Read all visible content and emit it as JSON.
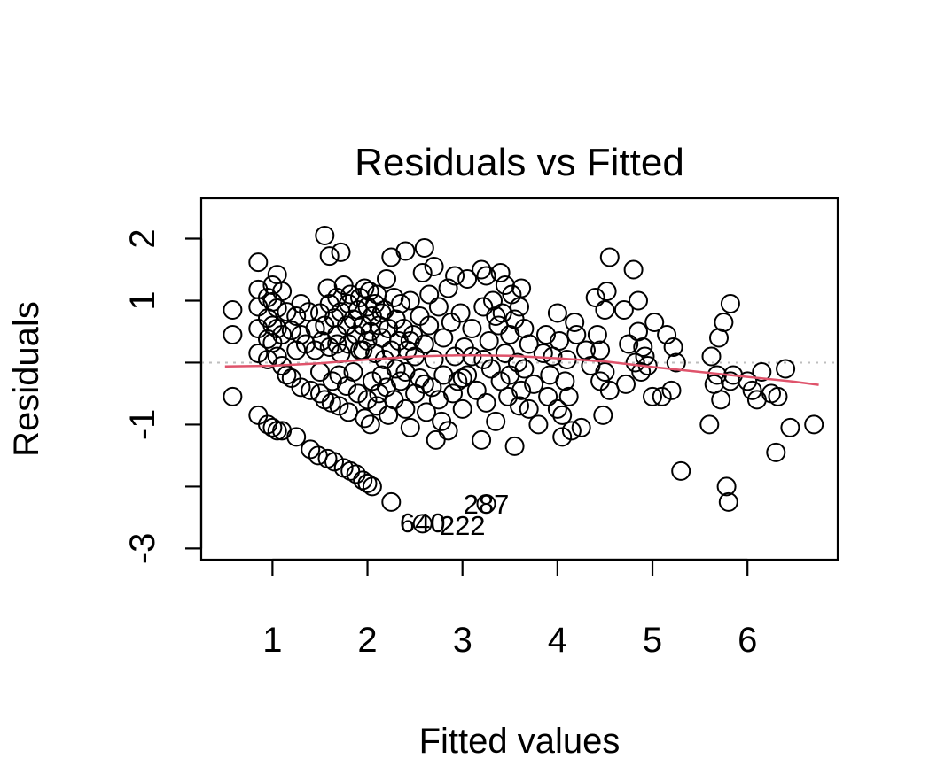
{
  "chart_data": {
    "type": "scatter",
    "title": "Residuals vs Fitted",
    "xlabel": "Fitted values",
    "ylabel": "Residuals",
    "xlim": [
      0.25,
      6.95
    ],
    "ylim": [
      -3.18,
      2.65
    ],
    "x_ticks": [
      1,
      2,
      3,
      4,
      5,
      6
    ],
    "x_tick_labels": [
      "1",
      "2",
      "3",
      "4",
      "5",
      "6"
    ],
    "y_ticks": [
      -3,
      -2,
      -1,
      0,
      1,
      2
    ],
    "y_tick_labels": [
      "-3",
      "",
      "-1",
      "",
      "1",
      "2"
    ],
    "reference_line": {
      "y": 0,
      "style": "dotted",
      "color": "#bebebe"
    },
    "smooth": {
      "color": "#df536b",
      "x": [
        0.5,
        1.0,
        1.5,
        2.0,
        2.5,
        3.0,
        3.5,
        4.0,
        4.5,
        5.0,
        5.5,
        6.0,
        6.5,
        6.75
      ],
      "y": [
        -0.06,
        -0.05,
        -0.01,
        0.05,
        0.1,
        0.12,
        0.11,
        0.07,
        0.02,
        -0.07,
        -0.15,
        -0.23,
        -0.31,
        -0.36
      ]
    },
    "point_labels": [
      {
        "text": "640",
        "x": 2.58,
        "y": -2.58
      },
      {
        "text": "222",
        "x": 3.0,
        "y": -2.62
      },
      {
        "text": "287",
        "x": 3.25,
        "y": -2.28
      }
    ],
    "points": [
      [
        0.58,
        0.85
      ],
      [
        0.58,
        0.45
      ],
      [
        0.58,
        -0.55
      ],
      [
        0.85,
        1.62
      ],
      [
        0.85,
        1.18
      ],
      [
        0.85,
        0.9
      ],
      [
        0.85,
        0.55
      ],
      [
        0.85,
        0.15
      ],
      [
        0.85,
        -0.85
      ],
      [
        0.95,
        1.05
      ],
      [
        0.95,
        0.72
      ],
      [
        0.95,
        0.38
      ],
      [
        0.95,
        0.05
      ],
      [
        0.95,
        -1.0
      ],
      [
        1.0,
        1.25
      ],
      [
        1.0,
        0.98
      ],
      [
        1.0,
        0.6
      ],
      [
        1.0,
        0.32
      ],
      [
        1.0,
        -1.05
      ],
      [
        1.05,
        1.42
      ],
      [
        1.05,
        0.88
      ],
      [
        1.05,
        0.55
      ],
      [
        1.05,
        0.1
      ],
      [
        1.05,
        -1.1
      ],
      [
        1.1,
        1.15
      ],
      [
        1.1,
        0.45
      ],
      [
        1.1,
        -0.05
      ],
      [
        1.1,
        -1.1
      ],
      [
        1.15,
        0.82
      ],
      [
        1.15,
        -0.2
      ],
      [
        1.2,
        0.52
      ],
      [
        1.2,
        -0.25
      ],
      [
        1.25,
        0.75
      ],
      [
        1.25,
        0.2
      ],
      [
        1.25,
        -1.2
      ],
      [
        1.3,
        0.45
      ],
      [
        1.3,
        -0.4
      ],
      [
        1.35,
        0.3
      ],
      [
        1.38,
        0.82
      ],
      [
        1.4,
        -0.45
      ],
      [
        1.4,
        -1.4
      ],
      [
        1.45,
        0.55
      ],
      [
        1.45,
        0.2
      ],
      [
        1.48,
        -1.5
      ],
      [
        1.5,
        0.8
      ],
      [
        1.5,
        -0.5
      ],
      [
        1.52,
        0.35
      ],
      [
        1.55,
        2.05
      ],
      [
        1.55,
        0.6
      ],
      [
        1.55,
        -0.6
      ],
      [
        1.58,
        1.2
      ],
      [
        1.58,
        -1.55
      ],
      [
        1.6,
        1.72
      ],
      [
        1.6,
        0.95
      ],
      [
        1.6,
        0.25
      ],
      [
        1.62,
        -0.65
      ],
      [
        1.63,
        -0.3
      ],
      [
        1.65,
        0.72
      ],
      [
        1.65,
        -1.6
      ],
      [
        1.68,
        1.05
      ],
      [
        1.68,
        0.45
      ],
      [
        1.7,
        -0.7
      ],
      [
        1.7,
        -0.2
      ],
      [
        1.72,
        1.78
      ],
      [
        1.72,
        0.82
      ],
      [
        1.72,
        0.15
      ],
      [
        1.75,
        1.25
      ],
      [
        1.75,
        -1.7
      ],
      [
        1.78,
        0.6
      ],
      [
        1.78,
        -0.38
      ],
      [
        1.8,
        0.95
      ],
      [
        1.8,
        0.3
      ],
      [
        1.8,
        -0.8
      ],
      [
        1.82,
        1.1
      ],
      [
        1.82,
        -1.75
      ],
      [
        1.85,
        0.7
      ],
      [
        1.85,
        -0.15
      ],
      [
        1.88,
        0.45
      ],
      [
        1.88,
        -1.8
      ],
      [
        1.9,
        0.85
      ],
      [
        1.9,
        -0.5
      ],
      [
        1.92,
        1.05
      ],
      [
        1.92,
        0.2
      ],
      [
        1.95,
        0.6
      ],
      [
        1.95,
        -1.9
      ],
      [
        1.97,
        1.2
      ],
      [
        1.97,
        -0.9
      ],
      [
        2.0,
        0.9
      ],
      [
        2.0,
        0.35
      ],
      [
        2.0,
        -0.6
      ],
      [
        2.0,
        -1.95
      ],
      [
        2.02,
        1.15
      ],
      [
        2.03,
        0.5
      ],
      [
        2.03,
        -1.0
      ],
      [
        2.05,
        0.75
      ],
      [
        2.05,
        -0.3
      ],
      [
        2.05,
        -2.0
      ],
      [
        2.08,
        0.95
      ],
      [
        2.08,
        0.15
      ],
      [
        2.1,
        1.1
      ],
      [
        2.1,
        -0.7
      ],
      [
        2.12,
        0.6
      ],
      [
        2.12,
        -0.5
      ],
      [
        2.15,
        0.4
      ],
      [
        2.15,
        -0.2
      ],
      [
        2.18,
        0.85
      ],
      [
        2.18,
        0.05
      ],
      [
        2.2,
        1.35
      ],
      [
        2.2,
        -0.4
      ],
      [
        2.22,
        0.55
      ],
      [
        2.22,
        -0.85
      ],
      [
        2.25,
        1.7
      ],
      [
        2.25,
        0.2
      ],
      [
        2.25,
        -2.25
      ],
      [
        2.28,
        1.05
      ],
      [
        2.28,
        -0.6
      ],
      [
        2.3,
        0.7
      ],
      [
        2.3,
        -0.1
      ],
      [
        2.33,
        0.35
      ],
      [
        2.35,
        0.95
      ],
      [
        2.35,
        -0.3
      ],
      [
        2.38,
        0.55
      ],
      [
        2.4,
        1.8
      ],
      [
        2.4,
        -0.75
      ],
      [
        2.42,
        0.2
      ],
      [
        2.45,
        1.0
      ],
      [
        2.45,
        -1.05
      ],
      [
        2.48,
        0.45
      ],
      [
        2.5,
        0.1
      ],
      [
        2.5,
        -0.5
      ],
      [
        2.55,
        0.75
      ],
      [
        2.55,
        -0.25
      ],
      [
        2.58,
        1.45
      ],
      [
        2.58,
        -2.6
      ],
      [
        2.6,
        1.85
      ],
      [
        2.6,
        0.3
      ],
      [
        2.62,
        -0.8
      ],
      [
        2.65,
        1.1
      ],
      [
        2.65,
        0.6
      ],
      [
        2.68,
        -0.4
      ],
      [
        2.7,
        1.55
      ],
      [
        2.7,
        0.05
      ],
      [
        2.72,
        -1.25
      ],
      [
        2.75,
        0.9
      ],
      [
        2.75,
        -0.6
      ],
      [
        2.8,
        0.4
      ],
      [
        2.8,
        -0.2
      ],
      [
        2.85,
        1.2
      ],
      [
        2.85,
        -1.1
      ],
      [
        2.88,
        0.65
      ],
      [
        2.9,
        -0.5
      ],
      [
        2.92,
        1.4
      ],
      [
        2.92,
        0.1
      ],
      [
        2.95,
        -0.3
      ],
      [
        2.98,
        0.8
      ],
      [
        3.0,
        -0.75
      ],
      [
        3.02,
        0.25
      ],
      [
        3.05,
        1.35
      ],
      [
        3.05,
        -0.2
      ],
      [
        3.1,
        0.55
      ],
      [
        3.15,
        -0.45
      ],
      [
        3.2,
        1.5
      ],
      [
        3.2,
        -1.25
      ],
      [
        3.22,
        0.9
      ],
      [
        3.22,
        0.05
      ],
      [
        3.25,
        1.4
      ],
      [
        3.25,
        -0.65
      ],
      [
        3.25,
        -2.28
      ],
      [
        3.28,
        0.35
      ],
      [
        3.3,
        -0.1
      ],
      [
        3.32,
        1.0
      ],
      [
        3.35,
        -0.95
      ],
      [
        3.38,
        0.6
      ],
      [
        3.4,
        1.45
      ],
      [
        3.4,
        -0.3
      ],
      [
        3.42,
        0.8
      ],
      [
        3.45,
        0.15
      ],
      [
        3.45,
        1.25
      ],
      [
        3.48,
        -0.55
      ],
      [
        3.5,
        0.45
      ],
      [
        3.5,
        -0.2
      ],
      [
        3.52,
        1.1
      ],
      [
        3.55,
        -1.35
      ],
      [
        3.55,
        0.7
      ],
      [
        3.58,
        0.0
      ],
      [
        3.6,
        0.9
      ],
      [
        3.6,
        -0.7
      ],
      [
        3.62,
        1.2
      ],
      [
        3.62,
        -0.45
      ],
      [
        3.65,
        0.55
      ],
      [
        3.65,
        -0.1
      ],
      [
        3.7,
        0.3
      ],
      [
        3.75,
        -0.35
      ],
      [
        3.8,
        -1.0
      ],
      [
        3.85,
        0.15
      ],
      [
        3.88,
        0.45
      ],
      [
        3.9,
        -0.55
      ],
      [
        3.92,
        -0.2
      ],
      [
        3.95,
        0.1
      ],
      [
        4.0,
        0.8
      ],
      [
        4.0,
        -0.75
      ],
      [
        4.02,
        0.35
      ],
      [
        4.05,
        -1.2
      ],
      [
        4.05,
        -0.85
      ],
      [
        4.08,
        -0.3
      ],
      [
        4.1,
        0.05
      ],
      [
        4.12,
        -0.55
      ],
      [
        4.15,
        -1.1
      ],
      [
        4.18,
        0.65
      ],
      [
        4.2,
        0.45
      ],
      [
        4.25,
        -1.05
      ],
      [
        4.4,
        1.05
      ],
      [
        4.42,
        0.45
      ],
      [
        4.45,
        0.2
      ],
      [
        4.45,
        -0.3
      ],
      [
        4.48,
        -0.85
      ],
      [
        4.5,
        0.85
      ],
      [
        4.5,
        -0.15
      ],
      [
        4.52,
        1.15
      ],
      [
        4.55,
        1.7
      ],
      [
        4.55,
        -0.45
      ],
      [
        4.7,
        0.85
      ],
      [
        4.72,
        -0.35
      ],
      [
        4.75,
        0.3
      ],
      [
        4.8,
        1.5
      ],
      [
        4.82,
        0.0
      ],
      [
        4.85,
        0.5
      ],
      [
        4.85,
        1.0
      ],
      [
        4.88,
        -0.15
      ],
      [
        4.9,
        0.25
      ],
      [
        4.92,
        0.1
      ],
      [
        4.95,
        -0.05
      ],
      [
        5.0,
        -0.55
      ],
      [
        5.02,
        0.65
      ],
      [
        5.1,
        -0.55
      ],
      [
        5.15,
        0.45
      ],
      [
        5.2,
        -0.45
      ],
      [
        5.22,
        0.25
      ],
      [
        5.25,
        0.0
      ],
      [
        5.3,
        -1.75
      ],
      [
        5.6,
        -1.0
      ],
      [
        5.62,
        0.1
      ],
      [
        5.65,
        -0.35
      ],
      [
        5.68,
        -0.2
      ],
      [
        5.7,
        0.4
      ],
      [
        5.72,
        -0.6
      ],
      [
        5.75,
        0.65
      ],
      [
        5.78,
        -2.0
      ],
      [
        5.8,
        -2.25
      ],
      [
        5.82,
        0.95
      ],
      [
        5.82,
        -0.3
      ],
      [
        5.85,
        -0.2
      ],
      [
        6.0,
        -0.3
      ],
      [
        6.05,
        -0.45
      ],
      [
        6.1,
        -0.6
      ],
      [
        6.15,
        -0.15
      ],
      [
        6.25,
        -0.5
      ],
      [
        6.3,
        -1.45
      ],
      [
        6.32,
        -0.55
      ],
      [
        6.4,
        -0.1
      ],
      [
        6.45,
        -1.05
      ],
      [
        6.7,
        -1.0
      ],
      [
        3.0,
        -0.25
      ],
      [
        2.78,
        -0.95
      ],
      [
        3.35,
        0.75
      ],
      [
        4.3,
        0.2
      ],
      [
        1.95,
        0.2
      ],
      [
        2.15,
        0.8
      ],
      [
        1.68,
        0.3
      ],
      [
        2.4,
        -0.15
      ],
      [
        3.7,
        -0.75
      ],
      [
        3.1,
        0.1
      ],
      [
        4.35,
        -0.05
      ],
      [
        2.6,
        -0.35
      ],
      [
        1.5,
        -0.15
      ],
      [
        1.3,
        0.95
      ],
      [
        2.45,
        0.35
      ]
    ]
  }
}
